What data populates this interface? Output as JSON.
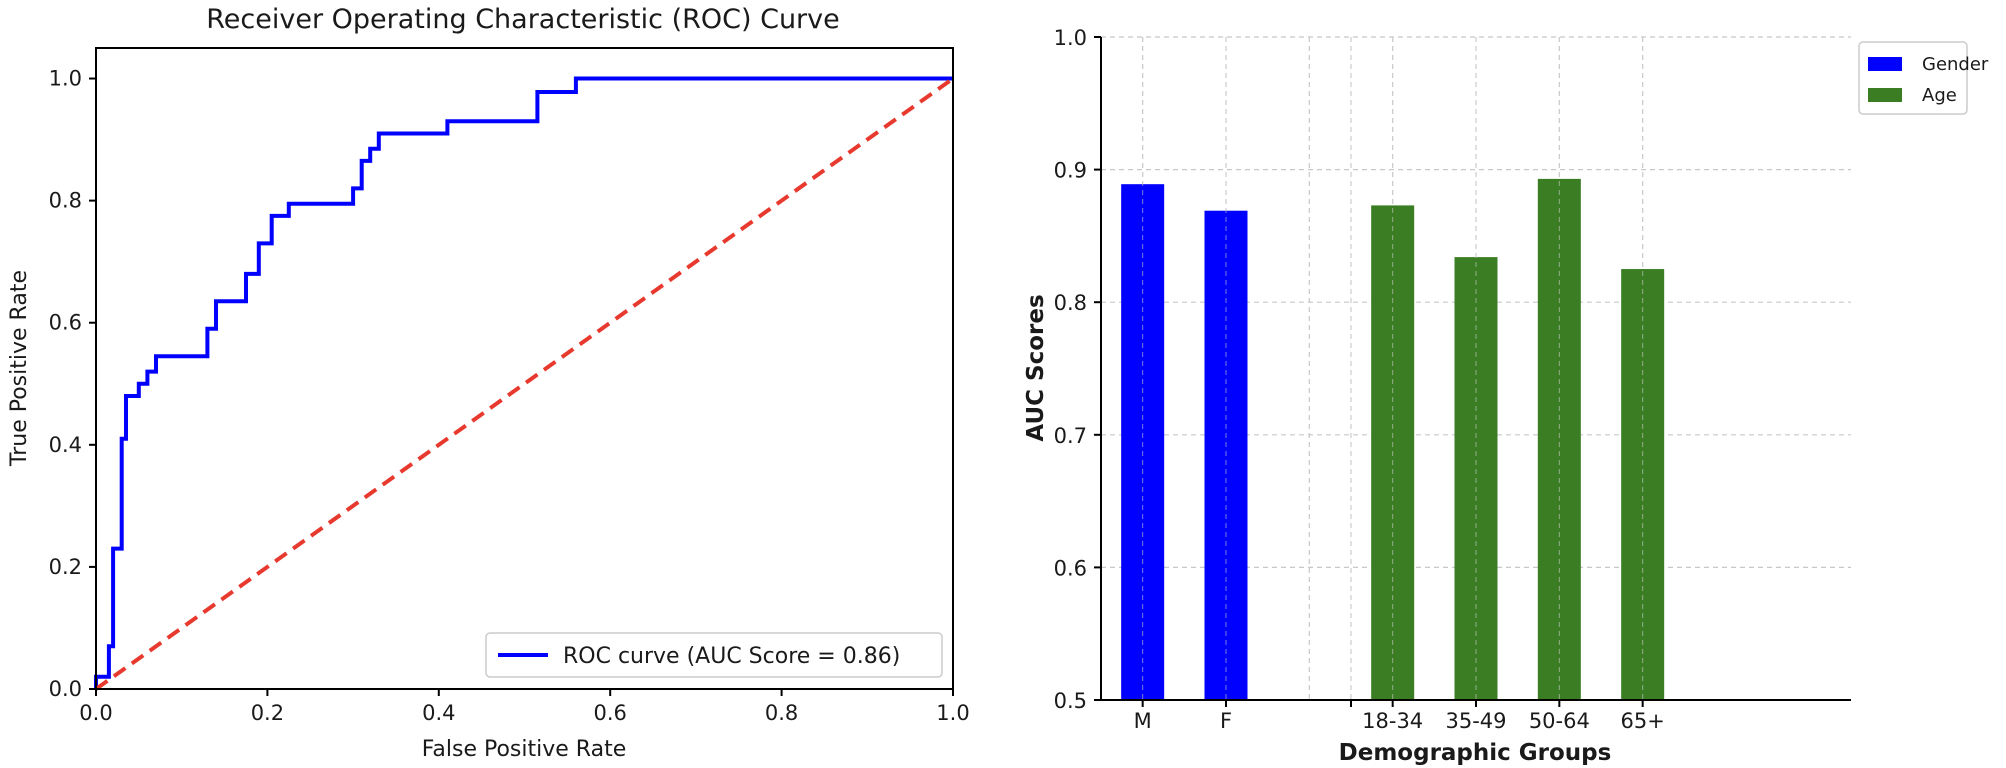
{
  "chart_data": [
    {
      "type": "line",
      "title": "Receiver Operating Characteristic (ROC) Curve",
      "xlabel": "False Positive Rate",
      "ylabel": "True Positive Rate",
      "xlim": [
        0.0,
        1.0
      ],
      "ylim": [
        0.0,
        1.05
      ],
      "x_ticks": [
        "0.0",
        "0.2",
        "0.4",
        "0.6",
        "0.8",
        "1.0"
      ],
      "y_ticks": [
        "0.0",
        "0.2",
        "0.4",
        "0.6",
        "0.8",
        "1.0"
      ],
      "grid": false,
      "legend_position": "lower-right",
      "series": [
        {
          "name": "ROC curve (AUC Score = 0.86)",
          "color": "#0000ff",
          "style": "solid",
          "x": [
            0.0,
            0.0,
            0.015,
            0.015,
            0.02,
            0.02,
            0.03,
            0.03,
            0.035,
            0.035,
            0.05,
            0.05,
            0.06,
            0.06,
            0.07,
            0.07,
            0.13,
            0.13,
            0.14,
            0.14,
            0.175,
            0.175,
            0.19,
            0.19,
            0.205,
            0.205,
            0.225,
            0.225,
            0.3,
            0.3,
            0.31,
            0.31,
            0.32,
            0.32,
            0.33,
            0.33,
            0.41,
            0.41,
            0.515,
            0.515,
            0.56,
            0.56,
            1.0
          ],
          "y": [
            0.0,
            0.02,
            0.02,
            0.07,
            0.07,
            0.23,
            0.23,
            0.41,
            0.41,
            0.48,
            0.48,
            0.5,
            0.5,
            0.52,
            0.52,
            0.545,
            0.545,
            0.59,
            0.59,
            0.635,
            0.635,
            0.68,
            0.68,
            0.73,
            0.73,
            0.775,
            0.775,
            0.795,
            0.795,
            0.82,
            0.82,
            0.865,
            0.865,
            0.885,
            0.885,
            0.91,
            0.91,
            0.93,
            0.93,
            0.978,
            0.978,
            1.0,
            1.0
          ]
        },
        {
          "name": "",
          "color": "#e8392e",
          "style": "dashed",
          "x": [
            0.0,
            1.0
          ],
          "y": [
            0.0,
            1.0
          ]
        }
      ]
    },
    {
      "type": "bar",
      "title": "",
      "xlabel": "Demographic Groups",
      "ylabel": "AUC Scores",
      "ylim": [
        0.5,
        1.0
      ],
      "y_ticks": [
        "0.5",
        "0.6",
        "0.7",
        "0.8",
        "0.9",
        "1.0"
      ],
      "grid": true,
      "legend_position": "upper-right",
      "categories": [
        "M",
        "F",
        "18-34",
        "35-49",
        "50-64",
        "65+"
      ],
      "series": [
        {
          "name": "Gender",
          "color": "#0000ff",
          "values": [
            0.889,
            0.869,
            null,
            null,
            null,
            null
          ]
        },
        {
          "name": "Age",
          "color": "#3a7d23",
          "values": [
            null,
            null,
            0.873,
            0.834,
            0.893,
            0.825
          ]
        }
      ]
    }
  ]
}
